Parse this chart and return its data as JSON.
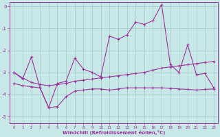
{
  "xlabel": "Windchill (Refroidissement éolien,°C)",
  "background_color": "#c8e8e8",
  "grid_color": "#a0c8c8",
  "line_color": "#993399",
  "x": [
    0,
    1,
    2,
    3,
    4,
    5,
    6,
    7,
    8,
    9,
    10,
    11,
    12,
    13,
    14,
    15,
    16,
    17,
    18,
    19,
    20,
    21,
    22,
    23
  ],
  "y_top": [
    -3.0,
    -3.3,
    -2.3,
    -3.7,
    -4.6,
    -3.5,
    -3.4,
    -2.35,
    -2.85,
    -3.0,
    -3.2,
    -1.35,
    -1.5,
    -1.3,
    -0.72,
    -0.82,
    -0.65,
    0.08,
    -2.65,
    -3.0,
    -1.75,
    -3.1,
    -3.05,
    -3.7
  ],
  "y_mid": [
    -3.0,
    -3.25,
    -3.45,
    -3.55,
    -3.6,
    -3.55,
    -3.5,
    -3.4,
    -3.35,
    -3.3,
    -3.25,
    -3.2,
    -3.15,
    -3.1,
    -3.05,
    -3.0,
    -2.9,
    -2.8,
    -2.75,
    -2.7,
    -2.65,
    -2.6,
    -2.55,
    -2.5
  ],
  "y_bot": [
    -3.5,
    -3.6,
    -3.65,
    -3.7,
    -4.6,
    -4.55,
    -4.1,
    -3.85,
    -3.8,
    -3.75,
    -3.75,
    -3.8,
    -3.75,
    -3.7,
    -3.7,
    -3.7,
    -3.7,
    -3.7,
    -3.72,
    -3.75,
    -3.77,
    -3.8,
    -3.77,
    -3.75
  ],
  "ylim": [
    -5.3,
    0.2
  ],
  "xlim": [
    -0.5,
    23.5
  ],
  "yticks": [
    0,
    -1,
    -2,
    -3,
    -4,
    -5
  ],
  "xticks": [
    0,
    1,
    2,
    3,
    4,
    5,
    6,
    7,
    8,
    9,
    10,
    11,
    12,
    13,
    14,
    15,
    16,
    17,
    18,
    19,
    20,
    21,
    22,
    23
  ]
}
